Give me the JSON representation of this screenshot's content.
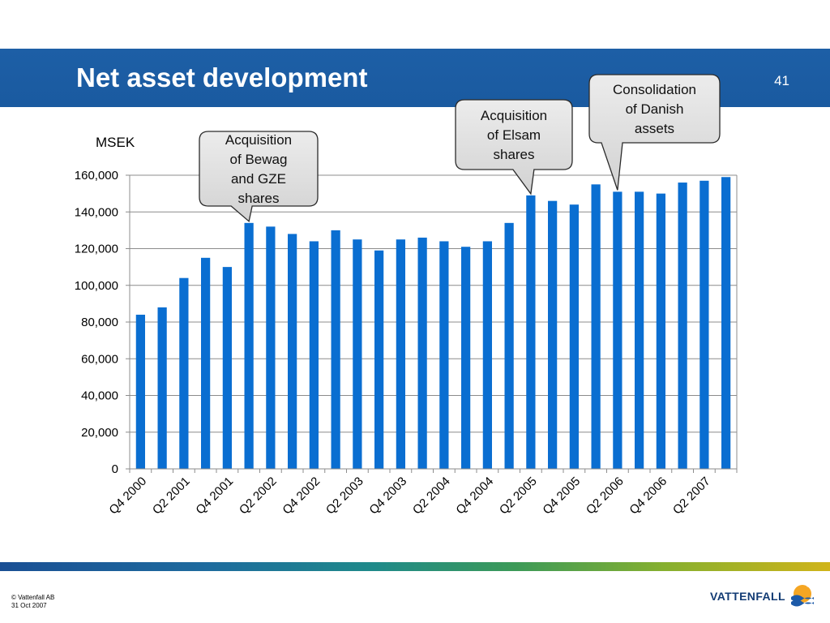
{
  "slide": {
    "title": "Net asset development",
    "page_number": "41",
    "footer": {
      "copyright": "© Vattenfall AB",
      "date": "31 Oct 2007"
    },
    "logo_text": "VATTENFALL"
  },
  "colors": {
    "title_bar": "#1d5fa6",
    "bar": "#0a6ed1",
    "logo_text": "#123b74",
    "callout_fill": "#dcdcdc"
  },
  "chart_data": {
    "type": "bar",
    "title": "",
    "ylabel": "MSEK",
    "xlabel": "",
    "ylim": [
      0,
      160000
    ],
    "yticks": [
      0,
      20000,
      40000,
      60000,
      80000,
      100000,
      120000,
      140000,
      160000
    ],
    "ytick_labels": [
      "0",
      "20,000",
      "40,000",
      "60,000",
      "80,000",
      "100,000",
      "120,000",
      "140,000",
      "160,000"
    ],
    "grid": true,
    "categories": [
      "Q4 2000",
      "",
      "Q2 2001",
      "",
      "Q4 2001",
      "",
      "Q2 2002",
      "",
      "Q4 2002",
      "",
      "Q2 2003",
      "",
      "Q4 2003",
      "",
      "Q2 2004",
      "",
      "Q4 2004",
      "",
      "Q2 2005",
      "",
      "Q4 2005",
      "",
      "Q2 2006",
      "",
      "Q4 2006",
      "",
      "Q2 2007",
      ""
    ],
    "values": [
      84000,
      88000,
      104000,
      115000,
      110000,
      134000,
      132000,
      128000,
      124000,
      130000,
      125000,
      119000,
      125000,
      126000,
      124000,
      121000,
      124000,
      134000,
      149000,
      146000,
      144000,
      155000,
      151000,
      151000,
      150000,
      156000,
      157000,
      159000
    ],
    "annotations": [
      {
        "text": [
          "Acquisition",
          "of Bewag",
          "and GZE",
          "shares"
        ],
        "bar_index": 5
      },
      {
        "text": [
          "Acquisition",
          "of Elsam",
          "shares"
        ],
        "bar_index": 18
      },
      {
        "text": [
          "Consolidation",
          "of Danish",
          "assets"
        ],
        "bar_index": 22
      }
    ]
  }
}
